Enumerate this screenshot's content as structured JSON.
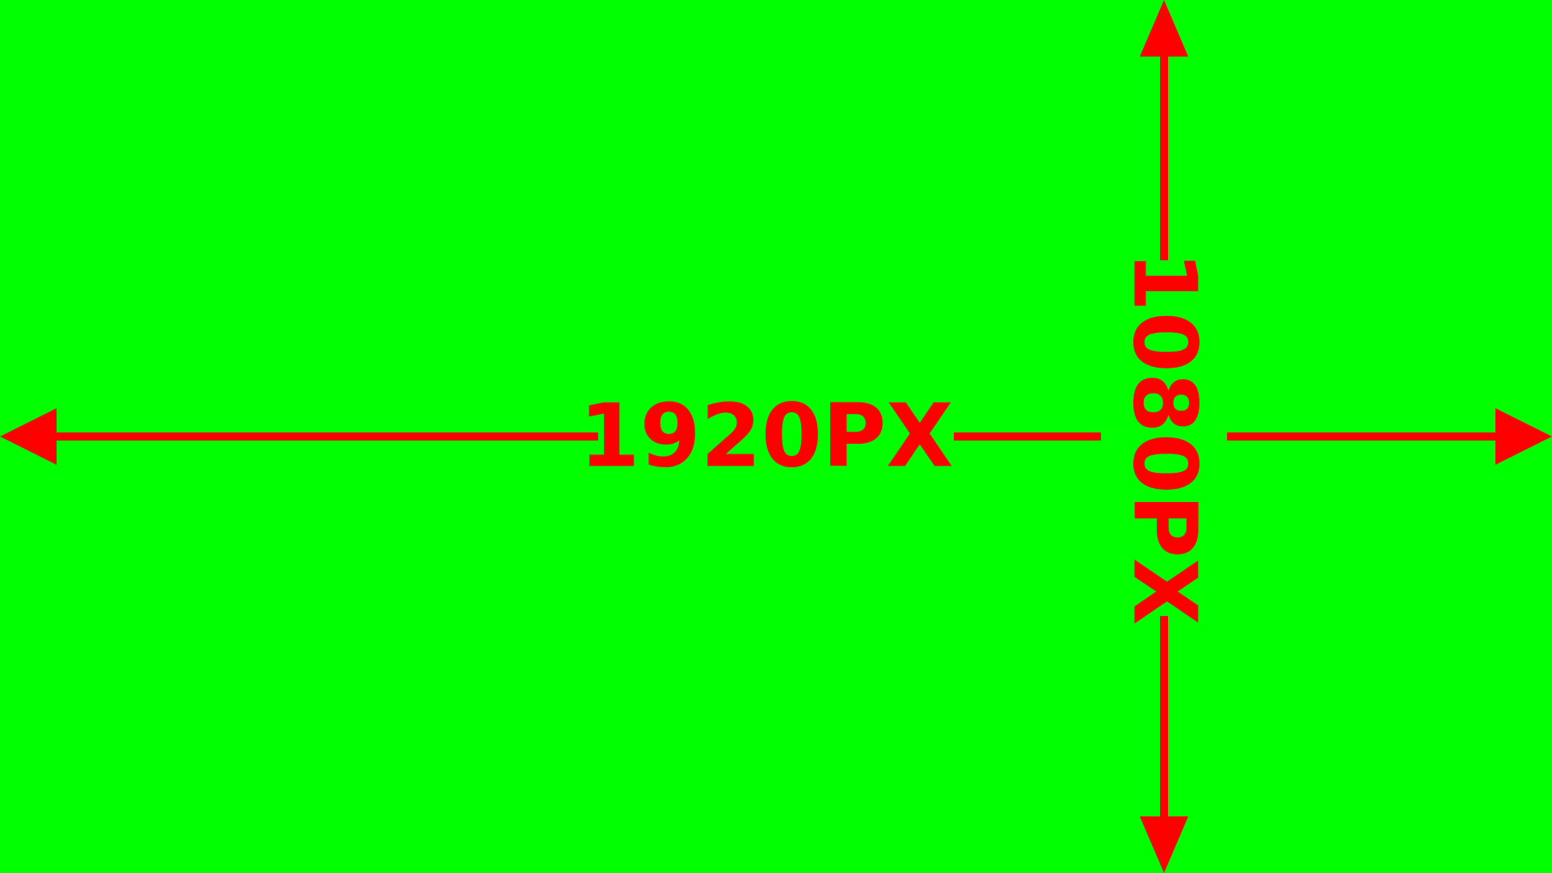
{
  "colors": {
    "background": "#00FF00",
    "marker": "#FF0000"
  },
  "labels": {
    "width": "1920PX",
    "height": "1080PX"
  },
  "icons": {
    "horizontal": "double-headed-horizontal-arrow",
    "vertical": "double-headed-vertical-arrow"
  }
}
